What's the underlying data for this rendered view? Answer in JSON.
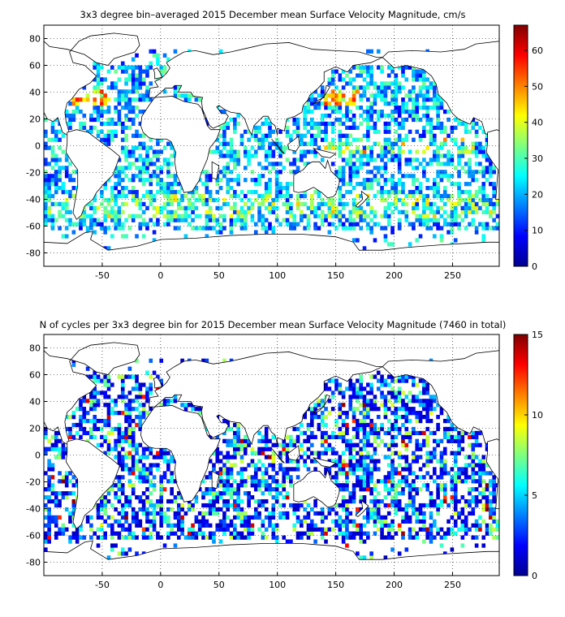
{
  "colors": {
    "ocean_background": "#ffffff",
    "grid": "#000000",
    "coastline": "#000000",
    "colormap": "jet"
  },
  "chart_data": [
    {
      "type": "heatmap",
      "title": "3x3 degree bin–averaged 2015 December mean Surface Velocity Magnitude, cm/s",
      "xlabel": "",
      "ylabel": "",
      "xlim": [
        -100,
        290
      ],
      "ylim": [
        -90,
        90
      ],
      "xticks": [
        -50,
        0,
        50,
        100,
        150,
        200,
        250
      ],
      "yticks": [
        -80,
        -60,
        -40,
        -20,
        0,
        20,
        40,
        60,
        80
      ],
      "grid": "dotted",
      "bin_size_deg": 3,
      "colorbar": {
        "min": 0,
        "max": 67,
        "ticks": [
          0,
          10,
          20,
          30,
          40,
          50,
          60
        ],
        "placement": "right"
      },
      "field": "velocity",
      "bins_note": "bins shown with colors from the jet colormap; high values along equatorial Pacific, Gulf Stream, Kuroshio and Antarctic Circumpolar Current"
    },
    {
      "type": "heatmap",
      "title": "N of cycles per 3x3 degree bin for 2015 December mean Surface Velocity Magnitude (7460 in total)",
      "xlabel": "",
      "ylabel": "",
      "xlim": [
        -100,
        290
      ],
      "ylim": [
        -90,
        90
      ],
      "xticks": [
        -50,
        0,
        50,
        100,
        150,
        200,
        250
      ],
      "yticks": [
        -80,
        -60,
        -40,
        -20,
        0,
        20,
        40,
        60,
        80
      ],
      "grid": "dotted",
      "bin_size_deg": 3,
      "colorbar": {
        "min": 0,
        "max": 15,
        "ticks": [
          0,
          5,
          10,
          15
        ],
        "placement": "right"
      },
      "field": "count"
    }
  ]
}
